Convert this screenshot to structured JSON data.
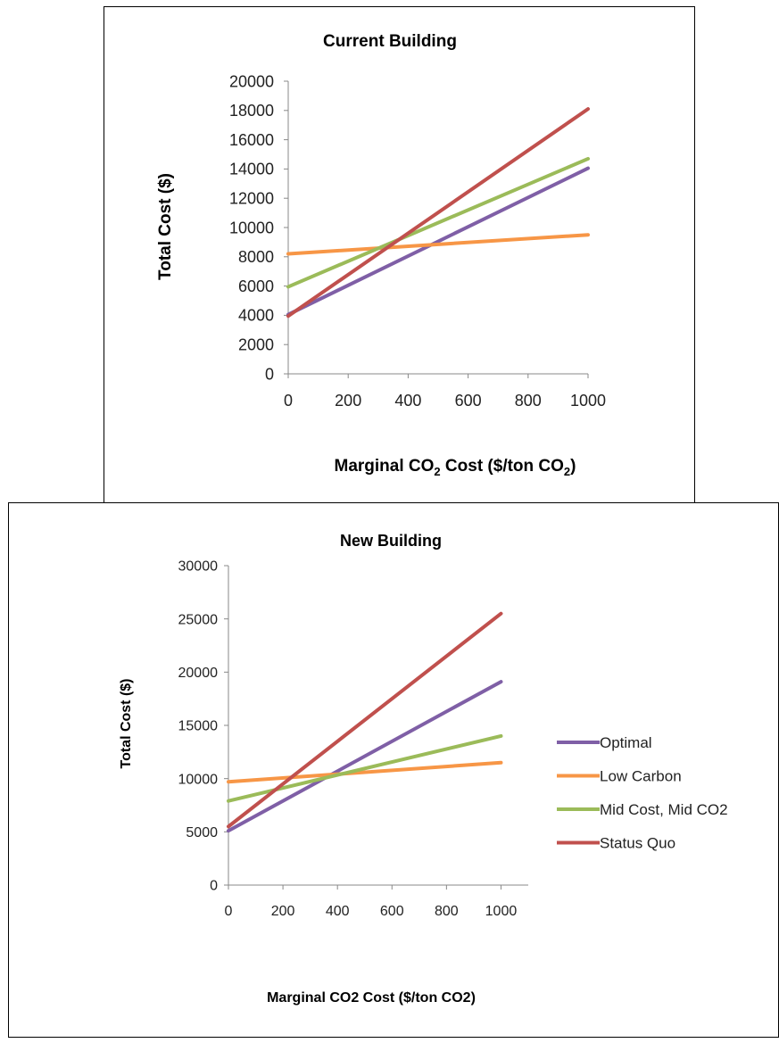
{
  "chart_data": [
    {
      "type": "line",
      "title": "Current Building",
      "xlabel": {
        "pre": "Marginal CO",
        "sub1": "2",
        "mid": " Cost ($/ton CO",
        "sub2": "2",
        "post": ")"
      },
      "ylabel": "Total Cost ($)",
      "xlim": [
        0,
        1000
      ],
      "ylim": [
        0,
        20000
      ],
      "xticks": [
        "0",
        "200",
        "400",
        "600",
        "800",
        "1000"
      ],
      "yticks": [
        "0",
        "2000",
        "4000",
        "6000",
        "8000",
        "10000",
        "12000",
        "14000",
        "16000",
        "18000",
        "20000"
      ],
      "x": [
        0,
        1000
      ],
      "series": [
        {
          "name": "Optimal",
          "color": "#7f5fa6",
          "values": [
            4050,
            14050
          ]
        },
        {
          "name": "Low Carbon",
          "color": "#f79646",
          "values": [
            8200,
            9500
          ]
        },
        {
          "name": "Mid Cost, Mid CO2",
          "color": "#9bbb59",
          "values": [
            5950,
            14700
          ]
        },
        {
          "name": "Status Quo",
          "color": "#c0504d",
          "values": [
            3950,
            18100
          ]
        }
      ],
      "legend": "none",
      "grid": false
    },
    {
      "type": "line",
      "title": "New Building",
      "xlabel": "Marginal CO2 Cost ($/ton CO2)",
      "ylabel": "Total Cost ($)",
      "xlim": [
        0,
        1100
      ],
      "ylim": [
        0,
        30000
      ],
      "xticks": [
        "0",
        "200",
        "400",
        "600",
        "800",
        "1000"
      ],
      "yticks": [
        "0",
        "5000",
        "10000",
        "15000",
        "20000",
        "25000",
        "30000"
      ],
      "x": [
        0,
        1000
      ],
      "series": [
        {
          "name": "Optimal",
          "color": "#7f5fa6",
          "values": [
            5100,
            19100
          ]
        },
        {
          "name": "Low Carbon",
          "color": "#f79646",
          "values": [
            9700,
            11500
          ]
        },
        {
          "name": "Mid Cost, Mid CO2",
          "color": "#9bbb59",
          "values": [
            7900,
            14000
          ]
        },
        {
          "name": "Status Quo",
          "color": "#c0504d",
          "values": [
            5500,
            25500
          ]
        }
      ],
      "legend": "right",
      "grid": false
    }
  ]
}
